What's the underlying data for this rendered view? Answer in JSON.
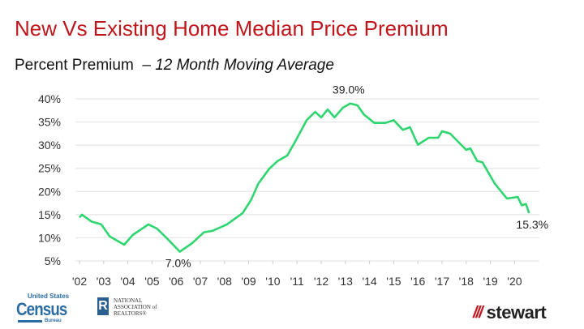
{
  "title": "New Vs Existing Home Median Price Premium",
  "subtitle": {
    "main": "Percent Premium",
    "italic": "– 12 Month Moving Average"
  },
  "colors": {
    "title": "#c0161c",
    "line": "#2fd66f",
    "grid": "#e6e6e6"
  },
  "logos": {
    "census": {
      "top": "United States",
      "main": "Census",
      "bottom": "Bureau"
    },
    "nar": {
      "mark": "R",
      "lines": [
        "NATIONAL",
        "ASSOCIATION of",
        "REALTORS®"
      ]
    },
    "stewart": {
      "mark": "///",
      "name": "stewart"
    }
  },
  "chart_data": {
    "type": "line",
    "ylim": [
      5,
      40
    ],
    "xlim": [
      2002,
      2020.9
    ],
    "grid": true,
    "y_ticks": [
      "5%",
      "10%",
      "15%",
      "20%",
      "25%",
      "30%",
      "35%",
      "40%"
    ],
    "y_tick_values": [
      5,
      10,
      15,
      20,
      25,
      30,
      35,
      40
    ],
    "x_ticks": [
      "'02",
      "'03",
      "'04",
      "'05",
      "'06",
      "'07",
      "'08",
      "'09",
      "'10",
      "'11",
      "'12",
      "'13",
      "'14",
      "'15",
      "'16",
      "'17",
      "'18",
      "'19",
      "'20"
    ],
    "x_tick_values": [
      2002,
      2003,
      2004,
      2005,
      2006,
      2007,
      2008,
      2009,
      2010,
      2011,
      2012,
      2013,
      2014,
      2015,
      2016,
      2017,
      2018,
      2019,
      2020
    ],
    "annotations": [
      {
        "text": "39.0%",
        "x": 2013.2,
        "y": 39.0,
        "position": "above"
      },
      {
        "text": "7.0%",
        "x": 2006.15,
        "y": 7.0,
        "position": "below"
      },
      {
        "text": "15.3%",
        "x": 2020.6,
        "y": 15.3,
        "position": "below"
      }
    ],
    "series": [
      {
        "x": [
          2002.0,
          2002.1,
          2002.5,
          2002.9,
          2003.25,
          2003.85,
          2004.2,
          2004.85,
          2005.2,
          2005.65,
          2006.15,
          2006.65,
          2007.15,
          2007.5,
          2008.1,
          2008.75,
          2009.1,
          2009.4,
          2009.85,
          2010.2,
          2010.6,
          2010.95,
          2011.4,
          2011.75,
          2012.0,
          2012.27,
          2012.55,
          2012.9,
          2013.2,
          2013.5,
          2013.77,
          2014.2,
          2014.66,
          2015.0,
          2015.38,
          2015.67,
          2016.0,
          2016.45,
          2016.84,
          2017.0,
          2017.34,
          2017.67,
          2018.0,
          2018.17,
          2018.45,
          2018.67,
          2019.18,
          2019.68,
          2020.13,
          2020.3,
          2020.47,
          2020.6
        ],
        "y": [
          14.4,
          15.0,
          13.5,
          12.9,
          10.3,
          8.5,
          10.6,
          12.9,
          12.0,
          9.7,
          7.0,
          8.8,
          11.2,
          11.5,
          12.9,
          15.3,
          18.2,
          21.7,
          24.9,
          26.6,
          27.8,
          31.0,
          35.4,
          37.2,
          36.0,
          37.7,
          36.0,
          38.1,
          39.0,
          38.6,
          36.6,
          34.8,
          34.8,
          35.4,
          33.3,
          33.9,
          30.1,
          31.6,
          31.6,
          33.0,
          32.5,
          30.7,
          29.0,
          29.3,
          26.6,
          26.3,
          21.7,
          18.5,
          18.8,
          17.0,
          17.3,
          15.3
        ]
      }
    ]
  }
}
